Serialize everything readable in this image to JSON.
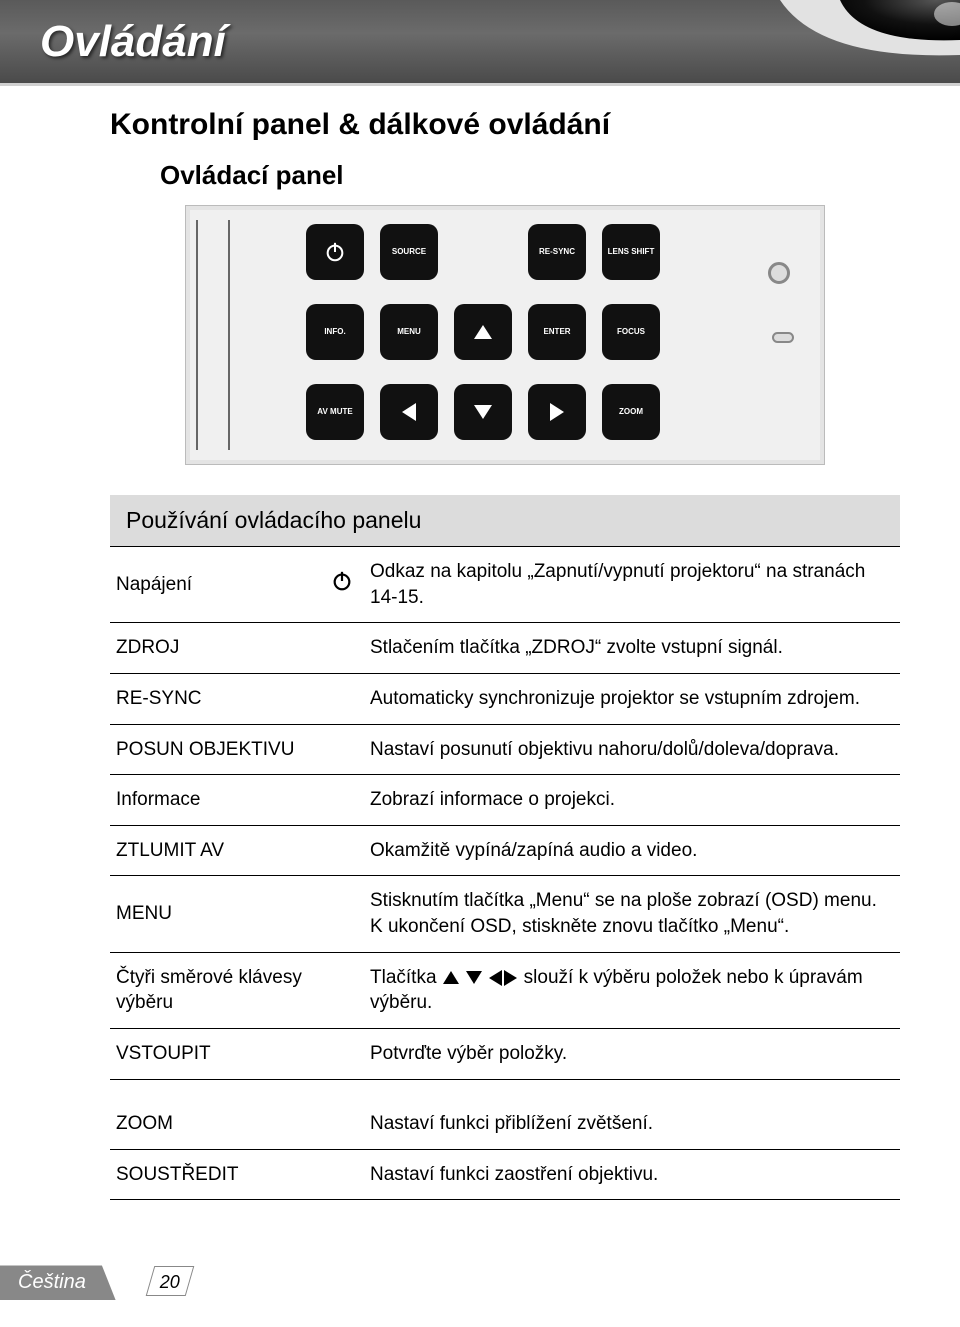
{
  "header": {
    "title": "Ovládání"
  },
  "section": {
    "title": "Kontrolní panel & dálkové ovládání",
    "subtitle": "Ovládací panel"
  },
  "panel": {
    "buttons": {
      "power": "⏻",
      "source": "SOURCE",
      "resync": "RE-SYNC",
      "lens_shift": "LENS SHIFT",
      "info": "INFO.",
      "menu": "MENU",
      "enter": "ENTER",
      "focus": "FOCUS",
      "av_mute": "AV MUTE",
      "zoom": "ZOOM"
    }
  },
  "table": {
    "caption": "Používání ovládacího panelu",
    "rows": [
      {
        "label": "Napájení",
        "icon": "power",
        "desc": "Odkaz na kapitolu „Zapnutí/vypnutí projektoru“ na stranách 14-15."
      },
      {
        "label": "ZDROJ",
        "desc": "Stlačením tlačítka „ZDROJ“ zvolte vstupní signál."
      },
      {
        "label": "RE-SYNC",
        "desc": "Automaticky synchronizuje projektor se vstupním zdrojem."
      },
      {
        "label": "POSUN OBJEKTIVU",
        "desc": "Nastaví posunutí objektivu nahoru/dolů/doleva/doprava."
      },
      {
        "label": "Informace",
        "desc": "Zobrazí informace o projekci."
      },
      {
        "label": "ZTLUMIT AV",
        "desc": "Okamžitě vypíná/zapíná audio a video."
      },
      {
        "label": "MENU",
        "desc": "Stisknutím tlačítka „Menu“ se na ploše zobrazí (OSD) menu. K ukončení OSD, stiskněte znovu tlačítko „Menu“."
      },
      {
        "label": "Čtyři směrové klávesy výběru",
        "icon": "arrows-inline",
        "desc_pre": "Tlačítka ",
        "desc_post": " slouží k výběru položek nebo k úpravám výběru."
      },
      {
        "label": "VSTOUPIT",
        "desc": "Potvrďte výběr položky."
      }
    ],
    "extra_rows": [
      {
        "label": "ZOOM",
        "desc": "Nastaví funkci přiblížení zvětšení."
      },
      {
        "label": "SOUSTŘEDIT",
        "desc": "Nastaví funkci zaostření objektivu."
      }
    ]
  },
  "footer": {
    "language": "Čeština",
    "page": "20"
  },
  "colors": {
    "header_bg": "#5a5a5a",
    "caption_bg": "#dcdcdc",
    "button_bg": "#111111",
    "page_bg": "#ffffff"
  }
}
